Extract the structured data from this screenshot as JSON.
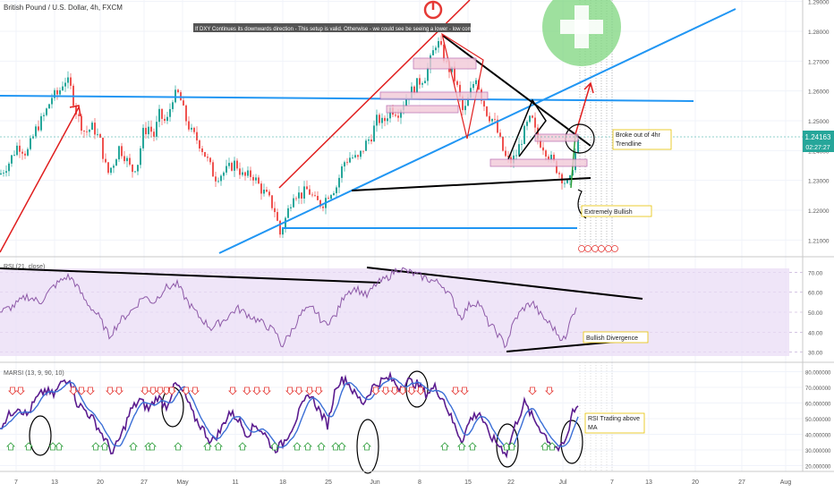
{
  "colors": {
    "up": "#26a69a",
    "down": "#ef5350",
    "blue_line": "#2196f3",
    "red_line": "#e01e1e",
    "rsi_band": "#e9dcf6",
    "rsi_line": "#8e5aa8",
    "marsi_line": "#5b1c8f",
    "marsi_ma": "#3b6fd6",
    "arrow_up": "#2e9e3b",
    "arrow_down": "#e53935",
    "callout_border": "#e6c200",
    "price_badge": "#26a69a"
  },
  "header": {
    "symbol": "British Pound / U.S. Dollar, 4h, FXCM",
    "note": "If DXY Continues its downwards direction - This setup is valid. Otherwise - we could see be seeing a lower - low come into play."
  },
  "panes": {
    "rsi_label": "RSI (21, close)",
    "marsi_label": "MARSI (13, 9, 90, 10)"
  },
  "callouts": {
    "trendline": [
      "Broke out of 4hr",
      "Trendline"
    ],
    "bullish": "Extremely Bullish",
    "divergence": "Bullish Divergence",
    "rsi_ma": [
      "RSI Trading above",
      "MA"
    ]
  },
  "price_badge": {
    "price": "1.24163",
    "countdown": "02:27:27"
  },
  "chart_data": [
    {
      "type": "candlestick",
      "title": "British Pound / U.S. Dollar, 4h, FXCM",
      "y_ticks": [
        "1.29000",
        "1.28000",
        "1.27000",
        "1.26000",
        "1.25000",
        "1.24000",
        "1.23000",
        "1.22000",
        "1.21000"
      ],
      "x_ticks": [
        "7",
        "13",
        "20",
        "27",
        "May",
        "11",
        "18",
        "25",
        "Jun",
        "8",
        "15",
        "22",
        "Jul",
        "7",
        "13",
        "20",
        "27",
        "Aug"
      ],
      "ylim": [
        1.205,
        1.2905
      ],
      "last_price": 1.24163,
      "approx_close_path": [
        [
          0,
          1.232
        ],
        [
          10,
          1.236
        ],
        [
          20,
          1.242
        ],
        [
          30,
          1.239
        ],
        [
          40,
          1.247
        ],
        [
          50,
          1.252
        ],
        [
          58,
          1.258
        ],
        [
          65,
          1.259
        ],
        [
          72,
          1.264
        ],
        [
          78,
          1.262
        ],
        [
          86,
          1.252
        ],
        [
          95,
          1.246
        ],
        [
          104,
          1.248
        ],
        [
          112,
          1.243
        ],
        [
          120,
          1.232
        ],
        [
          127,
          1.236
        ],
        [
          133,
          1.241
        ],
        [
          140,
          1.238
        ],
        [
          147,
          1.233
        ],
        [
          154,
          1.236
        ],
        [
          160,
          1.246
        ],
        [
          166,
          1.248
        ],
        [
          172,
          1.245
        ],
        [
          178,
          1.252
        ],
        [
          186,
          1.249
        ],
        [
          193,
          1.258
        ],
        [
          200,
          1.259
        ],
        [
          207,
          1.251
        ],
        [
          214,
          1.246
        ],
        [
          222,
          1.243
        ],
        [
          230,
          1.238
        ],
        [
          240,
          1.231
        ],
        [
          252,
          1.233
        ],
        [
          263,
          1.236
        ],
        [
          272,
          1.231
        ],
        [
          282,
          1.232
        ],
        [
          292,
          1.227
        ],
        [
          300,
          1.224
        ],
        [
          307,
          1.22
        ],
        [
          313,
          1.212
        ],
        [
          320,
          1.218
        ],
        [
          328,
          1.226
        ],
        [
          336,
          1.225
        ],
        [
          344,
          1.227
        ],
        [
          352,
          1.223
        ],
        [
          360,
          1.222
        ],
        [
          368,
          1.226
        ],
        [
          376,
          1.228
        ],
        [
          384,
          1.236
        ],
        [
          392,
          1.238
        ],
        [
          400,
          1.237
        ],
        [
          408,
          1.242
        ],
        [
          415,
          1.245
        ],
        [
          422,
          1.251
        ],
        [
          428,
          1.249
        ],
        [
          436,
          1.254
        ],
        [
          445,
          1.253
        ],
        [
          455,
          1.258
        ],
        [
          465,
          1.262
        ],
        [
          475,
          1.265
        ],
        [
          482,
          1.271
        ],
        [
          488,
          1.277
        ],
        [
          494,
          1.273
        ],
        [
          500,
          1.268
        ],
        [
          506,
          1.266
        ],
        [
          512,
          1.26
        ],
        [
          518,
          1.252
        ],
        [
          525,
          1.259
        ],
        [
          532,
          1.265
        ],
        [
          538,
          1.258
        ],
        [
          545,
          1.252
        ],
        [
          552,
          1.25
        ],
        [
          558,
          1.244
        ],
        [
          564,
          1.238
        ],
        [
          570,
          1.236
        ],
        [
          576,
          1.238
        ],
        [
          582,
          1.243
        ],
        [
          588,
          1.248
        ],
        [
          594,
          1.251
        ],
        [
          600,
          1.244
        ],
        [
          606,
          1.242
        ],
        [
          612,
          1.239
        ],
        [
          618,
          1.236
        ],
        [
          624,
          1.233
        ],
        [
          630,
          1.23
        ],
        [
          636,
          1.228
        ],
        [
          641,
          1.237
        ],
        [
          646,
          1.242
        ]
      ]
    },
    {
      "type": "line",
      "title": "RSI (21, close)",
      "y_ticks": [
        "70.00",
        "60.00",
        "50.00",
        "40.00",
        "30.00"
      ],
      "ylim": [
        28,
        72
      ],
      "approx_path": [
        [
          0,
          50
        ],
        [
          15,
          53
        ],
        [
          30,
          58
        ],
        [
          45,
          55
        ],
        [
          60,
          63
        ],
        [
          75,
          68
        ],
        [
          82,
          66
        ],
        [
          95,
          56
        ],
        [
          110,
          48
        ],
        [
          122,
          38
        ],
        [
          135,
          46
        ],
        [
          150,
          52
        ],
        [
          160,
          58
        ],
        [
          172,
          55
        ],
        [
          184,
          62
        ],
        [
          198,
          64
        ],
        [
          210,
          55
        ],
        [
          222,
          48
        ],
        [
          236,
          42
        ],
        [
          250,
          46
        ],
        [
          265,
          52
        ],
        [
          280,
          48
        ],
        [
          295,
          44
        ],
        [
          308,
          40
        ],
        [
          315,
          33
        ],
        [
          325,
          40
        ],
        [
          338,
          50
        ],
        [
          350,
          52
        ],
        [
          362,
          44
        ],
        [
          375,
          48
        ],
        [
          386,
          60
        ],
        [
          398,
          62
        ],
        [
          410,
          58
        ],
        [
          420,
          64
        ],
        [
          432,
          67
        ],
        [
          445,
          72
        ],
        [
          458,
          70
        ],
        [
          470,
          68
        ],
        [
          482,
          66
        ],
        [
          494,
          64
        ],
        [
          505,
          57
        ],
        [
          515,
          47
        ],
        [
          525,
          54
        ],
        [
          535,
          55
        ],
        [
          545,
          45
        ],
        [
          555,
          40
        ],
        [
          565,
          33
        ],
        [
          575,
          46
        ],
        [
          585,
          52
        ],
        [
          595,
          55
        ],
        [
          605,
          48
        ],
        [
          615,
          44
        ],
        [
          625,
          38
        ],
        [
          633,
          36
        ],
        [
          638,
          49
        ],
        [
          644,
          51
        ]
      ]
    },
    {
      "type": "line",
      "title": "MARSI (13, 9, 90, 10)",
      "y_ticks": [
        "80.000000",
        "70.000000",
        "60.000000",
        "50.000000",
        "40.000000",
        "30.000000",
        "20.000000"
      ],
      "ylim": [
        18,
        82
      ],
      "series": [
        "MARSI",
        "MA"
      ],
      "approx_path": [
        [
          0,
          45
        ],
        [
          10,
          52
        ],
        [
          20,
          58
        ],
        [
          30,
          52
        ],
        [
          40,
          62
        ],
        [
          50,
          68
        ],
        [
          60,
          65
        ],
        [
          70,
          74
        ],
        [
          78,
          76
        ],
        [
          86,
          60
        ],
        [
          96,
          55
        ],
        [
          106,
          48
        ],
        [
          116,
          38
        ],
        [
          126,
          28
        ],
        [
          136,
          40
        ],
        [
          146,
          55
        ],
        [
          156,
          62
        ],
        [
          166,
          56
        ],
        [
          176,
          64
        ],
        [
          186,
          58
        ],
        [
          196,
          72
        ],
        [
          206,
          66
        ],
        [
          216,
          52
        ],
        [
          226,
          44
        ],
        [
          236,
          35
        ],
        [
          246,
          42
        ],
        [
          256,
          54
        ],
        [
          266,
          50
        ],
        [
          276,
          40
        ],
        [
          286,
          46
        ],
        [
          296,
          40
        ],
        [
          306,
          30
        ],
        [
          316,
          34
        ],
        [
          326,
          44
        ],
        [
          336,
          56
        ],
        [
          346,
          66
        ],
        [
          356,
          56
        ],
        [
          366,
          46
        ],
        [
          376,
          72
        ],
        [
          386,
          76
        ],
        [
          396,
          66
        ],
        [
          406,
          60
        ],
        [
          416,
          70
        ],
        [
          426,
          74
        ],
        [
          436,
          76
        ],
        [
          446,
          70
        ],
        [
          456,
          74
        ],
        [
          466,
          72
        ],
        [
          476,
          66
        ],
        [
          486,
          70
        ],
        [
          496,
          62
        ],
        [
          506,
          48
        ],
        [
          516,
          36
        ],
        [
          526,
          50
        ],
        [
          536,
          54
        ],
        [
          546,
          40
        ],
        [
          556,
          34
        ],
        [
          566,
          28
        ],
        [
          576,
          46
        ],
        [
          586,
          60
        ],
        [
          596,
          50
        ],
        [
          606,
          42
        ],
        [
          616,
          34
        ],
        [
          626,
          30
        ],
        [
          634,
          38
        ],
        [
          640,
          56
        ],
        [
          646,
          58
        ]
      ]
    }
  ]
}
